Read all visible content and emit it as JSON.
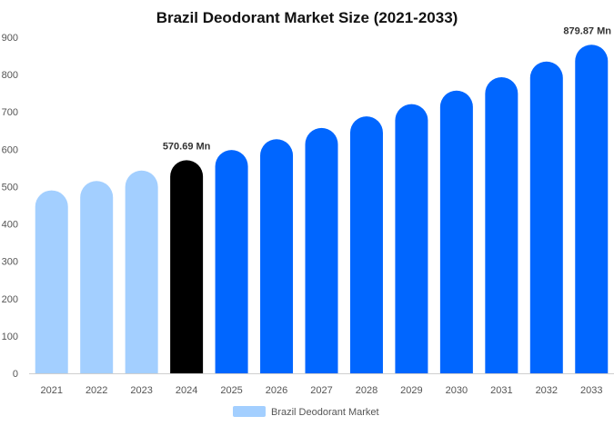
{
  "chart_data": {
    "type": "bar",
    "title": "Brazil Deodorant Market Size (2021-2033)",
    "xlabel": "",
    "ylabel": "",
    "ylim": [
      0,
      900
    ],
    "yticks": [
      0,
      100,
      200,
      300,
      400,
      500,
      600,
      700,
      800,
      900
    ],
    "categories": [
      "2021",
      "2022",
      "2023",
      "2024",
      "2025",
      "2026",
      "2027",
      "2028",
      "2029",
      "2030",
      "2031",
      "2032",
      "2033"
    ],
    "series": [
      {
        "name": "Brazil Deodorant Market",
        "values": [
          490,
          515,
          543,
          570.69,
          598,
          627,
          657,
          688,
          721,
          757,
          793,
          835,
          879.87
        ]
      }
    ],
    "data_labels": [
      {
        "category": "2024",
        "text": "570.69 Mn"
      },
      {
        "category": "2033",
        "text": "879.87 Mn"
      }
    ],
    "bar_colors": {
      "historic": "#a3cfff",
      "base_year": "#000000",
      "forecast": "#0066ff"
    },
    "base_year": "2024",
    "grid": false,
    "legend_position": "bottom-center"
  }
}
